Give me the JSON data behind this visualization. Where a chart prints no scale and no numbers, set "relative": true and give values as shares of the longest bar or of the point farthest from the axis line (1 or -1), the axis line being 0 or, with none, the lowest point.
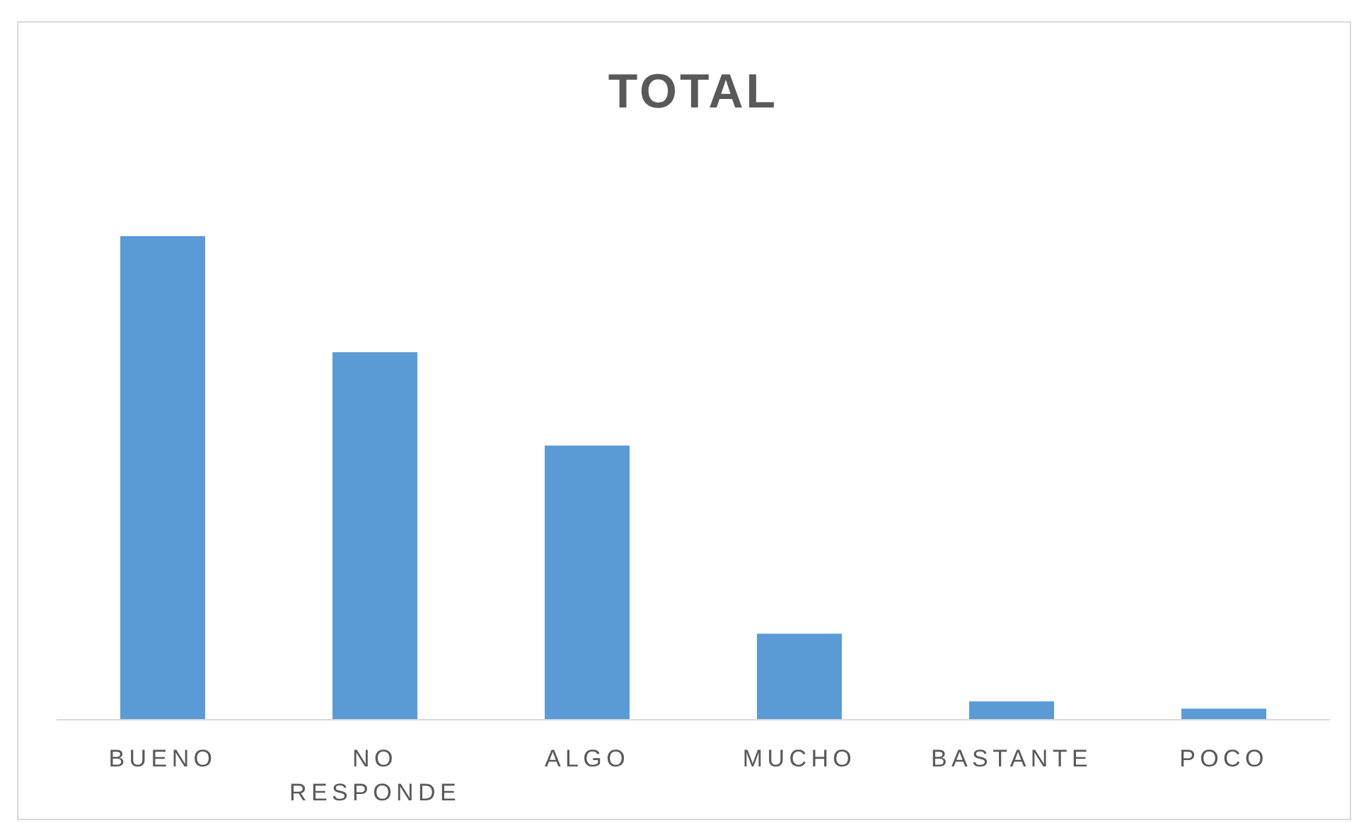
{
  "chart_data": {
    "type": "bar",
    "title": "TOTAL",
    "relative": true,
    "categories": [
      "BUENO",
      "NO RESPONDE",
      "ALGO",
      "MUCHO",
      "BASTANTE",
      "POCO"
    ],
    "values": [
      1,
      0.76,
      0.567,
      0.178,
      0.038,
      0.023
    ],
    "color": "#5b9bd5"
  }
}
